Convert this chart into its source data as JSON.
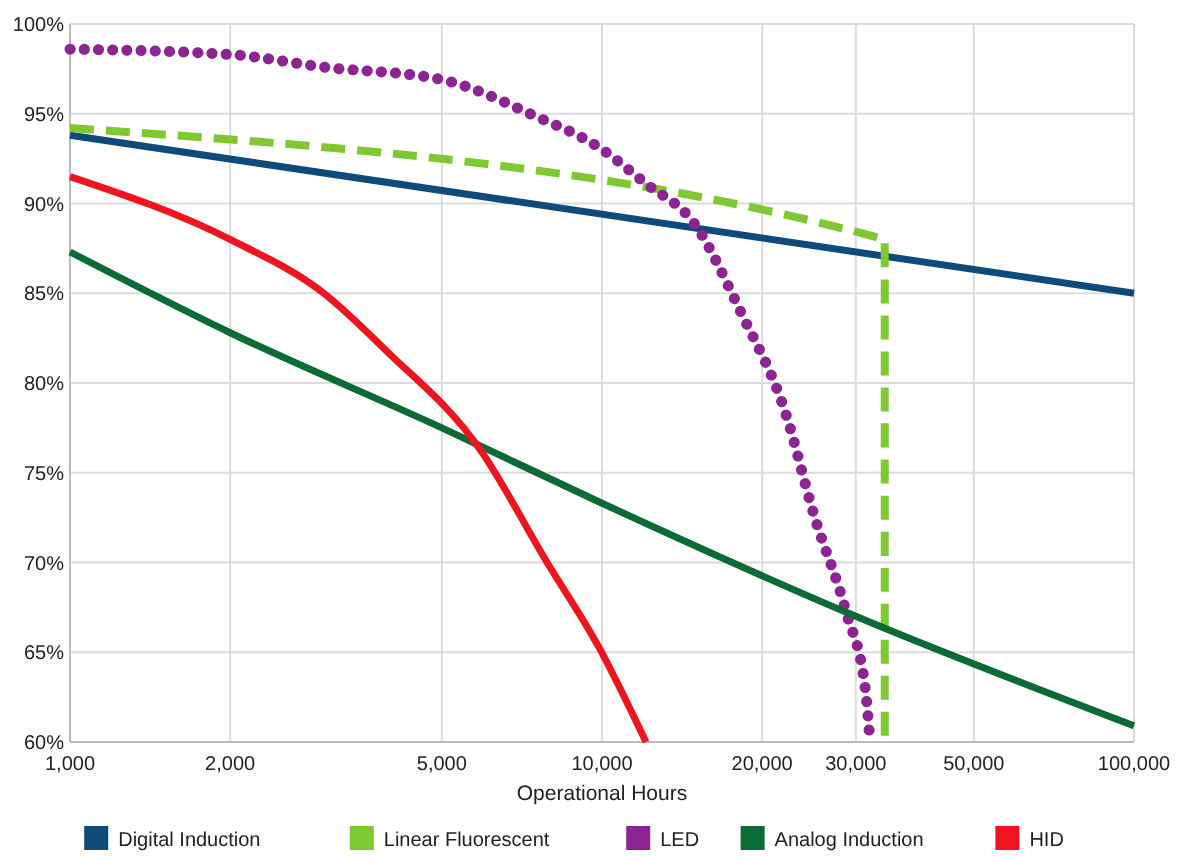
{
  "chart_data": {
    "type": "line",
    "xlabel": "Operational Hours",
    "log": "x",
    "grid": true,
    "legend": "bottom",
    "xlim": [
      1000,
      100000
    ],
    "ylim": [
      60,
      100
    ],
    "xticks": [
      {
        "value": 1000,
        "label": "1,000"
      },
      {
        "value": 2000,
        "label": "2,000"
      },
      {
        "value": 5000,
        "label": "5,000"
      },
      {
        "value": 10000,
        "label": "10,000"
      },
      {
        "value": 20000,
        "label": "20,000"
      },
      {
        "value": 30000,
        "label": "30,000"
      },
      {
        "value": 50000,
        "label": "50,000"
      },
      {
        "value": 100000,
        "label": "100,000"
      }
    ],
    "yticks": [
      {
        "value": 60,
        "label": "60%"
      },
      {
        "value": 65,
        "label": "65%"
      },
      {
        "value": 70,
        "label": "70%"
      },
      {
        "value": 75,
        "label": "75%"
      },
      {
        "value": 80,
        "label": "80%"
      },
      {
        "value": 85,
        "label": "85%"
      },
      {
        "value": 90,
        "label": "90%"
      },
      {
        "value": 95,
        "label": "95%"
      },
      {
        "value": 100,
        "label": "100%"
      }
    ],
    "series": [
      {
        "name": "Digital Induction",
        "color": "#0e4a7a",
        "line_style": "solid",
        "x": [
          1000,
          100000
        ],
        "values": [
          93.8,
          85.0
        ]
      },
      {
        "name": "Linear Fluorescent",
        "color": "#7ec832",
        "line_style": "dashed",
        "x": [
          1000,
          34000,
          34000
        ],
        "values": [
          94.2,
          88.0,
          60
        ]
      },
      {
        "name": "LED",
        "color": "#8e2393",
        "line_style": "dotted",
        "x": [
          1000,
          2000,
          3000,
          5000,
          7450,
          9900,
          12100,
          14900,
          18200,
          22200,
          25000,
          28800,
          31300,
          31900
        ],
        "values": [
          98.6,
          98.3,
          97.6,
          96.9,
          94.9,
          93.1,
          91.1,
          88.9,
          84.0,
          78.2,
          72.7,
          67.2,
          62.8,
          60
        ]
      },
      {
        "name": "Analog Induction",
        "color": "#0b6b35",
        "line_style": "solid",
        "x": [
          1000,
          2000,
          5000,
          10000,
          30000,
          100000
        ],
        "values": [
          87.3,
          82.8,
          77.5,
          73.3,
          67.0,
          60.9
        ]
      },
      {
        "name": "HID",
        "color": "#f0141e",
        "line_style": "solid",
        "x": [
          1000,
          2000,
          3000,
          3930,
          5900,
          7850,
          9900,
          12100
        ],
        "values": [
          91.5,
          88.0,
          85.0,
          81.8,
          76.3,
          70.1,
          65.2,
          60
        ]
      }
    ]
  }
}
